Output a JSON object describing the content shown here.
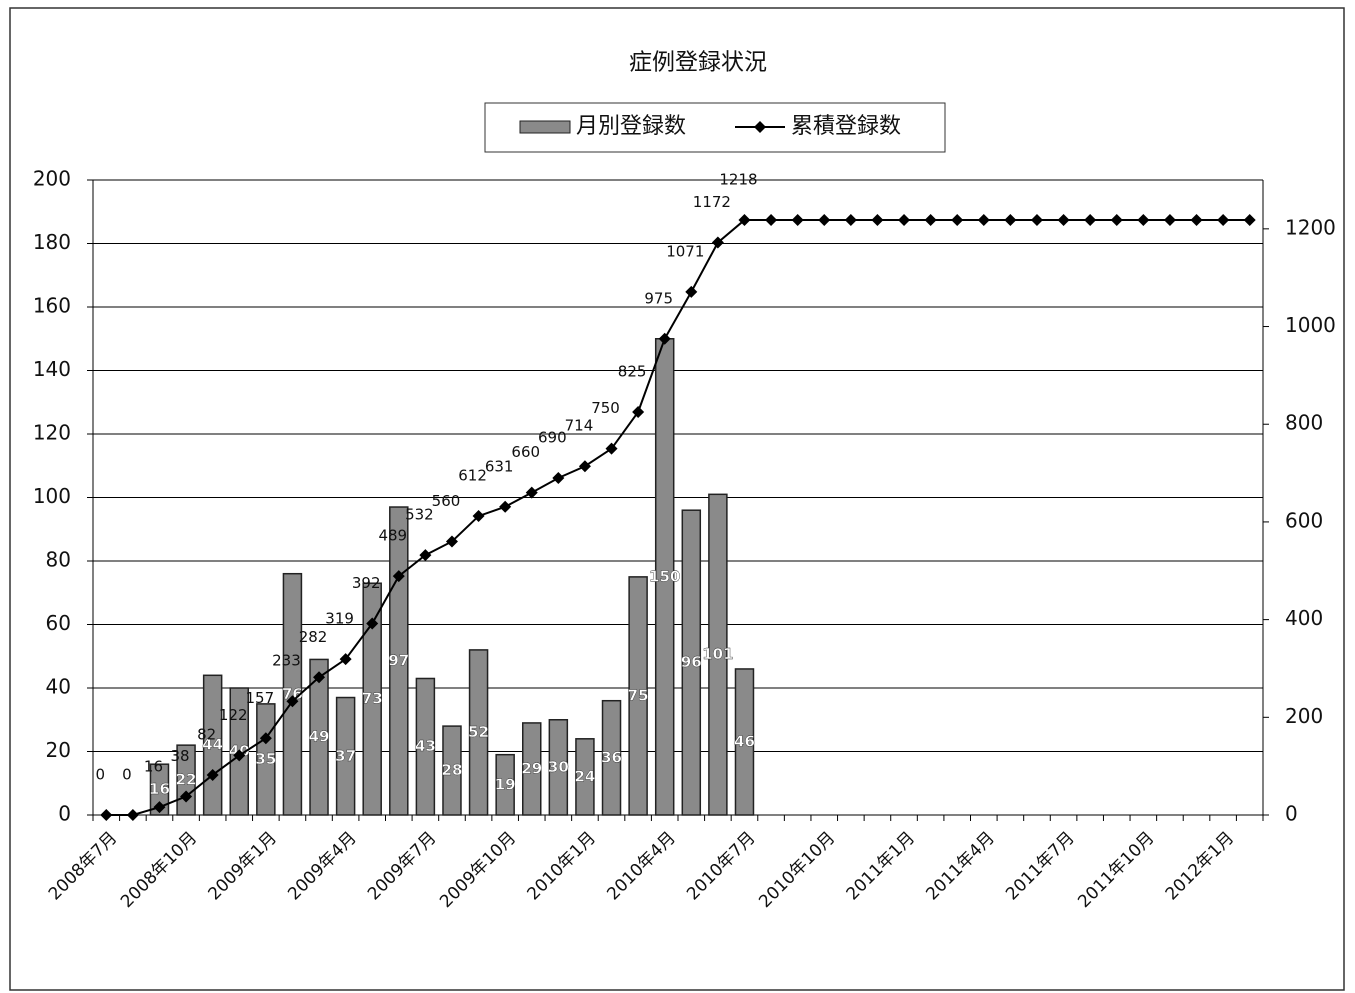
{
  "chart_data": {
    "type": "bar-line",
    "title": "症例登録状況",
    "categories": [
      "2008年7月",
      null,
      null,
      "2008年10月",
      null,
      null,
      "2009年1月",
      null,
      null,
      "2009年4月",
      null,
      null,
      "2009年7月",
      null,
      null,
      "2009年10月",
      null,
      null,
      "2010年1月",
      null,
      null,
      "2010年4月",
      null,
      null,
      "2010年7月",
      null,
      null,
      "2010年10月",
      null,
      null,
      "2011年1月",
      null,
      null,
      "2011年4月",
      null,
      null,
      "2011年7月",
      null,
      null,
      "2011年10月",
      null,
      null,
      "2012年1月",
      null
    ],
    "series": [
      {
        "name": "月別登録数",
        "type": "bar",
        "color": "#8a8a8a",
        "values": [
          0,
          0,
          16,
          22,
          44,
          40,
          35,
          76,
          49,
          37,
          73,
          97,
          43,
          28,
          52,
          19,
          29,
          30,
          24,
          36,
          75,
          150,
          96,
          101,
          46,
          null,
          null,
          null,
          null,
          null,
          null,
          null,
          null,
          null,
          null,
          null,
          null,
          null,
          null,
          null,
          null,
          null,
          null,
          null
        ],
        "value_labels": [
          null,
          null,
          "16",
          "22",
          "44",
          "40",
          "35",
          "76",
          "49",
          "37",
          "73",
          "97",
          "43",
          "28",
          "52",
          "19",
          "29",
          "30",
          "24",
          "36",
          "75",
          "150",
          "96",
          "101",
          "46",
          null,
          null,
          null,
          null,
          null,
          null,
          null,
          null,
          null,
          null,
          null,
          null,
          null,
          null,
          null,
          null,
          null,
          null,
          null
        ]
      },
      {
        "name": "累積登録数",
        "type": "line",
        "axis": "y2",
        "color": "#000000",
        "values": [
          0,
          0,
          16,
          38,
          82,
          122,
          157,
          233,
          282,
          319,
          392,
          489,
          532,
          560,
          612,
          631,
          660,
          690,
          714,
          750,
          825,
          975,
          1071,
          1172,
          1218,
          1218,
          1218,
          1218,
          1218,
          1218,
          1218,
          1218,
          1218,
          1218,
          1218,
          1218,
          1218,
          1218,
          1218,
          1218,
          1218,
          1218,
          1218,
          1218
        ],
        "value_labels": [
          "0",
          "0",
          "16",
          "38",
          "82",
          "122",
          "157",
          "233",
          "282",
          "319",
          "392",
          "489",
          "532",
          "560",
          "612",
          "631",
          "660",
          "690",
          "714",
          "750",
          "825",
          "975",
          "1071",
          "1172",
          "1218",
          null,
          null,
          null,
          null,
          null,
          null,
          null,
          null,
          null,
          null,
          null,
          null,
          null,
          null,
          null,
          null,
          null,
          null,
          null
        ]
      }
    ],
    "ylim": [
      0,
      200
    ],
    "yticks": [
      0,
      20,
      40,
      60,
      80,
      100,
      120,
      140,
      160,
      180,
      200
    ],
    "y2lim": [
      0,
      1300
    ],
    "y2ticks": [
      0,
      200,
      400,
      600,
      800,
      1000,
      1200
    ],
    "grid": true,
    "legend": "top"
  }
}
